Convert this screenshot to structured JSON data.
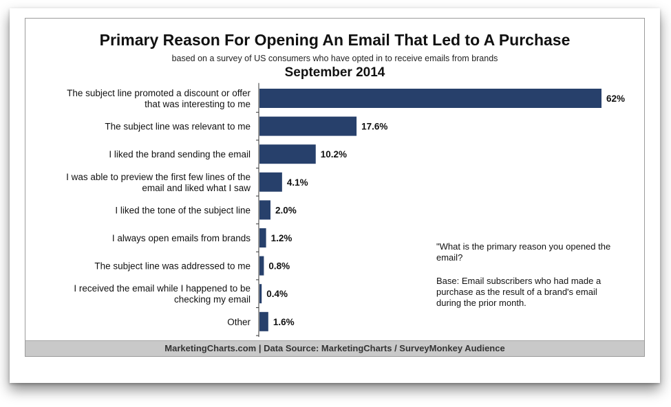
{
  "chart_data": {
    "type": "bar",
    "orientation": "horizontal",
    "title": "Primary Reason For Opening An Email That Led to A Purchase",
    "subtitle": "based on a survey of US consumers who have opted in to receive emails from brands",
    "date": "September 2014",
    "categories": [
      [
        "The subject line promoted a discount or offer",
        "that was interesting to me"
      ],
      [
        "The subject line was relevant to me"
      ],
      [
        "I liked the brand sending the email"
      ],
      [
        "I was able to preview the first few lines of the",
        "email and liked what I saw"
      ],
      [
        "I liked the tone of the subject line"
      ],
      [
        "I always open emails from brands"
      ],
      [
        "The subject line was addressed to me"
      ],
      [
        "I received the email while I happened to be",
        "checking my email"
      ],
      [
        "Other"
      ]
    ],
    "values": [
      62,
      17.6,
      10.2,
      4.1,
      2.0,
      1.2,
      0.8,
      0.4,
      1.6
    ],
    "value_labels": [
      "62%",
      "17.6%",
      "10.2%",
      "4.1%",
      "2.0%",
      "1.2%",
      "0.8%",
      "0.4%",
      "1.6%"
    ],
    "xlim": [
      0,
      62
    ],
    "bar_color": "#27406b",
    "grid": false,
    "legend": "none"
  },
  "notes": {
    "question": "\"What is the primary reason you opened the email?",
    "base": "Base: Email subscribers who had made a purchase as the result of a brand's email during the prior month."
  },
  "footer": "MarketingCharts.com | Data Source: MarketingCharts / SurveyMonkey Audience"
}
